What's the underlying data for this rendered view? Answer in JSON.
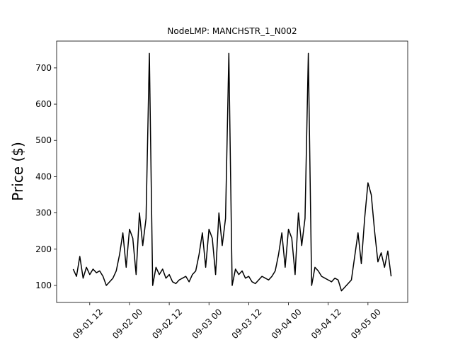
{
  "chart_data": {
    "type": "line",
    "title": "NodeLMP: MANCHSTR_1_N002",
    "ylabel": "Price ($)",
    "x": [
      "09-01 07",
      "09-01 08",
      "09-01 09",
      "09-01 10",
      "09-01 11",
      "09-01 12",
      "09-01 13",
      "09-01 14",
      "09-01 15",
      "09-01 16",
      "09-01 17",
      "09-01 18",
      "09-01 19",
      "09-01 20",
      "09-01 21",
      "09-01 22",
      "09-01 23",
      "09-02 00",
      "09-02 01",
      "09-02 02",
      "09-02 03",
      "09-02 04",
      "09-02 05",
      "09-02 06",
      "09-02 07",
      "09-02 08",
      "09-02 09",
      "09-02 10",
      "09-02 11",
      "09-02 12",
      "09-02 13",
      "09-02 14",
      "09-02 15",
      "09-02 16",
      "09-02 17",
      "09-02 18",
      "09-02 19",
      "09-02 20",
      "09-02 21",
      "09-02 22",
      "09-02 23",
      "09-03 00",
      "09-03 01",
      "09-03 02",
      "09-03 03",
      "09-03 04",
      "09-03 05",
      "09-03 06",
      "09-03 07",
      "09-03 08",
      "09-03 09",
      "09-03 10",
      "09-03 11",
      "09-03 12",
      "09-03 13",
      "09-03 14",
      "09-03 15",
      "09-03 16",
      "09-03 17",
      "09-03 18",
      "09-03 19",
      "09-03 20",
      "09-03 21",
      "09-03 22",
      "09-03 23",
      "09-04 00",
      "09-04 01",
      "09-04 02",
      "09-04 03",
      "09-04 04",
      "09-04 05",
      "09-04 06",
      "09-04 07",
      "09-04 08",
      "09-04 09",
      "09-04 10",
      "09-04 11",
      "09-04 12",
      "09-04 13",
      "09-04 14",
      "09-04 15",
      "09-04 16",
      "09-04 17",
      "09-04 18",
      "09-04 19",
      "09-04 20",
      "09-04 21",
      "09-04 22",
      "09-04 23",
      "09-05 00",
      "09-05 01",
      "09-05 02",
      "09-05 03",
      "09-05 04",
      "09-05 05",
      "09-05 06",
      "09-05 07"
    ],
    "series": [
      {
        "name": "MANCHSTR_1_N002",
        "color": "#000000",
        "values": [
          145,
          125,
          180,
          120,
          150,
          130,
          145,
          135,
          140,
          125,
          100,
          110,
          120,
          140,
          185,
          245,
          150,
          255,
          230,
          130,
          300,
          210,
          285,
          740,
          100,
          150,
          130,
          145,
          120,
          130,
          110,
          105,
          115,
          120,
          125,
          110,
          130,
          140,
          185,
          245,
          150,
          255,
          230,
          130,
          300,
          210,
          285,
          740,
          100,
          145,
          130,
          140,
          120,
          125,
          110,
          105,
          115,
          125,
          120,
          115,
          125,
          140,
          185,
          245,
          150,
          255,
          230,
          130,
          300,
          210,
          285,
          740,
          100,
          150,
          140,
          125,
          120,
          115,
          110,
          120,
          115,
          85,
          95,
          105,
          115,
          180,
          245,
          160,
          285,
          383,
          350,
          250,
          165,
          190,
          150,
          195,
          125
        ]
      }
    ],
    "xlim": [
      "09-01 02",
      "09-05 12"
    ],
    "xticks": [
      "09-01 12",
      "09-02 00",
      "09-02 12",
      "09-03 00",
      "09-03 12",
      "09-04 00",
      "09-04 12",
      "09-05 00"
    ],
    "ylim": [
      53,
      774
    ],
    "yticks": [
      100,
      200,
      300,
      400,
      500,
      600,
      700
    ]
  }
}
